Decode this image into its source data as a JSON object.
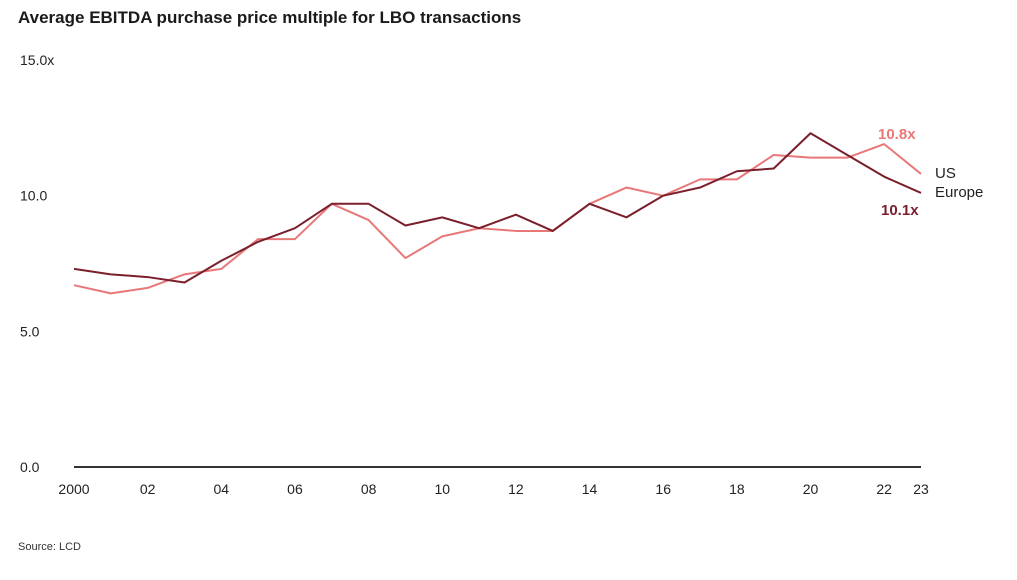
{
  "chart_data": {
    "type": "line",
    "title": "Average EBITDA purchase price multiple for LBO transactions",
    "source": "Source: LCD",
    "xlabel": "",
    "ylabel": "",
    "x": [
      2000,
      2001,
      2002,
      2003,
      2004,
      2005,
      2006,
      2007,
      2008,
      2009,
      2010,
      2011,
      2012,
      2013,
      2014,
      2015,
      2016,
      2017,
      2018,
      2019,
      2020,
      2021,
      2022,
      2023
    ],
    "xtick_labels": [
      "2000",
      "02",
      "04",
      "06",
      "08",
      "10",
      "12",
      "14",
      "16",
      "18",
      "20",
      "22",
      "23"
    ],
    "xtick_values": [
      2000,
      2002,
      2004,
      2006,
      2008,
      2010,
      2012,
      2014,
      2016,
      2018,
      2020,
      2022,
      2023
    ],
    "ytick_labels": [
      "0.0",
      "5.0",
      "10.0",
      "15.0x"
    ],
    "ytick_values": [
      0,
      5,
      10,
      15
    ],
    "ylim": [
      0,
      15
    ],
    "xlim": [
      2000,
      2024
    ],
    "grid": false,
    "series": [
      {
        "name": "US",
        "color": "#e87878",
        "values": [
          6.7,
          6.4,
          6.6,
          7.1,
          7.3,
          8.4,
          8.4,
          9.7,
          9.1,
          7.7,
          8.5,
          8.8,
          8.7,
          8.7,
          9.7,
          10.3,
          10.0,
          10.6,
          10.6,
          11.5,
          11.4,
          11.4,
          11.9,
          10.8
        ],
        "end_label": "10.8x"
      },
      {
        "name": "Europe",
        "color": "#7a1f2b",
        "values": [
          7.3,
          7.1,
          7.0,
          6.8,
          7.6,
          8.3,
          8.8,
          9.7,
          9.7,
          8.9,
          9.2,
          8.8,
          9.3,
          8.7,
          9.7,
          9.2,
          10.0,
          10.3,
          10.9,
          11.0,
          12.3,
          11.5,
          10.7,
          10.1
        ],
        "end_label": "10.1x"
      }
    ]
  }
}
